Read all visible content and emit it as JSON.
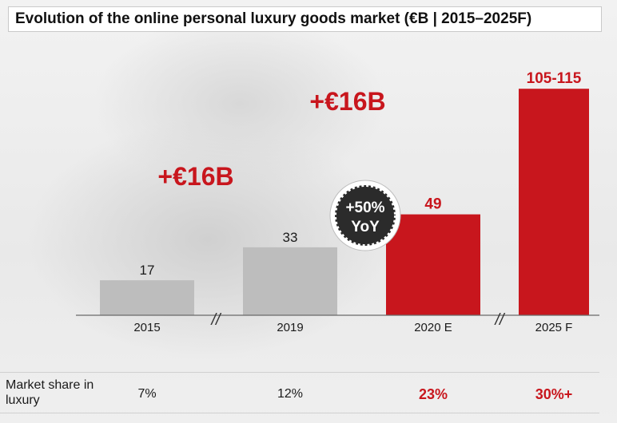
{
  "title": "Evolution of the online personal luxury goods market (€B | 2015–2025F)",
  "chart_data": {
    "type": "bar",
    "categories": [
      "2015",
      "2019",
      "2020 E",
      "2025 F"
    ],
    "values": [
      17,
      33,
      49,
      110
    ],
    "value_labels": [
      "17",
      "33",
      "49",
      "105-115"
    ],
    "range_2025F": [
      105,
      115
    ],
    "bar_colors": [
      "#bdbdbd",
      "#bdbdbd",
      "#c8161d",
      "#c8161d"
    ],
    "growth_callouts": [
      "+€16B",
      "+€16B"
    ],
    "yoy_badge": [
      "+50%",
      "YoY"
    ],
    "axis_break": "//",
    "ylim": [
      0,
      115
    ],
    "grid": false
  },
  "market_share": {
    "label": "Market share in luxury",
    "values": [
      "7%",
      "12%",
      "23%",
      "30%+"
    ],
    "highlight": [
      false,
      false,
      true,
      true
    ]
  },
  "colors": {
    "accent": "#c8161d",
    "neutral_bar": "#bdbdbd",
    "badge": "#2b2b2b"
  }
}
